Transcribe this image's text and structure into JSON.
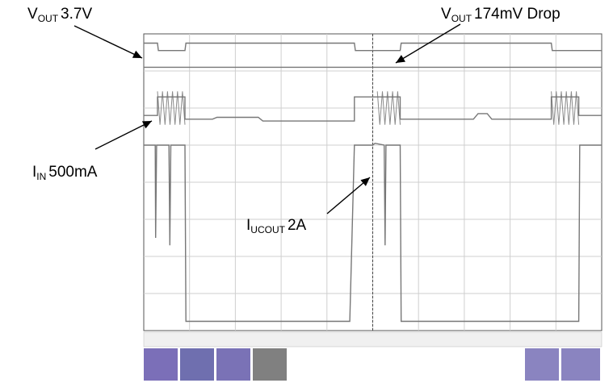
{
  "chart_data": {
    "type": "line",
    "title": "",
    "xlabel": "",
    "ylabel": "",
    "grid": true,
    "divisions": {
      "x": 10,
      "y": 8
    },
    "xlim": [
      0,
      10
    ],
    "ylim": [
      0,
      8
    ],
    "annotations": [
      {
        "main": "V",
        "sub": "OUT",
        "value": "3.7V"
      },
      {
        "main": "V",
        "sub": "OUT",
        "value": "174mV Drop"
      },
      {
        "main": "I",
        "sub": "IN",
        "value": "500mA"
      },
      {
        "main": "I",
        "sub": "UCOUT",
        "value": "2A"
      }
    ],
    "series": [
      {
        "color": "#777777",
        "x": [
          0,
          0.3,
          0.32,
          0.9,
          0.92,
          4.6,
          4.62,
          4.95,
          4.97,
          5.6,
          5.62,
          8.9,
          8.92,
          10
        ],
        "y": [
          7.75,
          7.75,
          7.55,
          7.55,
          7.75,
          7.75,
          7.55,
          7.55,
          7.55,
          7.55,
          7.75,
          7.75,
          7.55,
          7.55
        ]
      },
      {
        "color": "#777777",
        "x": [
          0,
          10
        ],
        "y": [
          7.1,
          7.1
        ]
      },
      {
        "color": "#777777",
        "x": [
          0,
          0.3,
          0.3,
          0.9,
          0.9,
          1.5,
          1.6,
          2.5,
          2.6,
          4.6,
          4.6,
          5.1,
          5.1,
          5.6,
          5.6,
          7.2,
          7.3,
          7.5,
          7.6,
          8.9,
          8.9,
          9.5,
          9.5,
          10
        ],
        "y": [
          5.8,
          5.8,
          6.3,
          6.3,
          5.7,
          5.7,
          5.75,
          5.75,
          5.65,
          5.65,
          6.3,
          6.3,
          6.3,
          6.3,
          5.7,
          5.7,
          5.85,
          5.85,
          5.7,
          5.7,
          6.3,
          6.3,
          5.8,
          5.8
        ]
      },
      {
        "color": "#777777",
        "x": [
          0,
          0.25,
          0.26,
          0.28,
          0.3,
          0.55,
          0.57,
          0.59,
          0.61,
          0.9,
          0.92,
          4.5,
          4.6,
          5.0,
          5.05,
          5.25,
          5.27,
          5.29,
          5.31,
          5.6,
          5.62,
          9.5,
          9.52,
          10
        ],
        "y": [
          5.0,
          5.0,
          2.5,
          5.0,
          5.0,
          5.0,
          2.3,
          5.0,
          5.0,
          5.0,
          0.25,
          0.25,
          5.0,
          5.0,
          5.05,
          5.0,
          2.3,
          5.0,
          5.0,
          5.0,
          0.25,
          0.25,
          5.0,
          5.0
        ]
      }
    ],
    "overlays": [
      {
        "left": [
          "",
          "",
          "",
          ""
        ],
        "right": [
          "",
          "",
          ""
        ]
      }
    ]
  }
}
